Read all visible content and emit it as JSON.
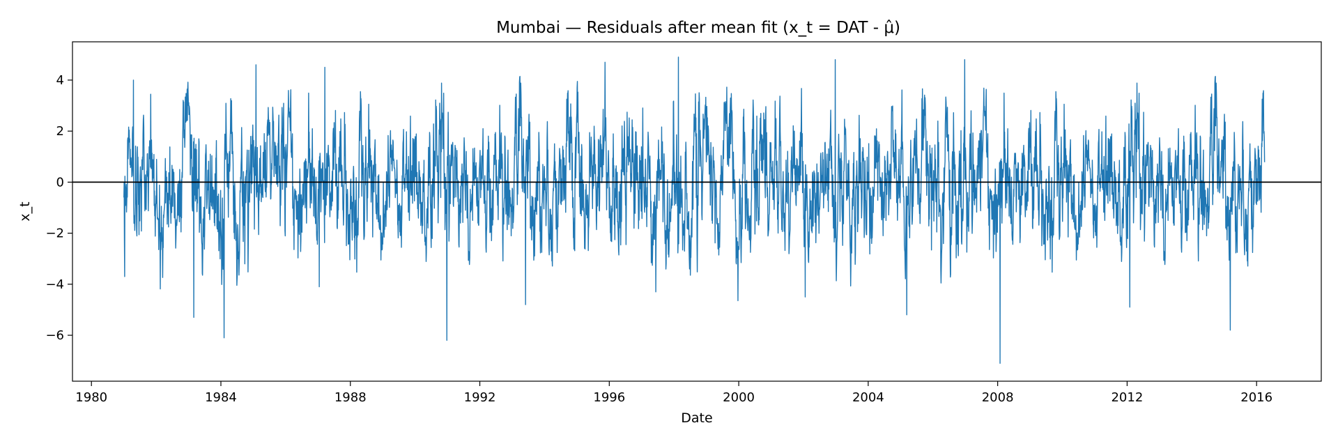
{
  "chart_data": {
    "type": "line",
    "title": "Mumbai — Residuals after mean fit (x_t = DAT - μ̂)",
    "xlabel": "Date",
    "ylabel": "x_t",
    "x_type": "date",
    "x_range": [
      "1979-06-01",
      "2017-12-31"
    ],
    "ylim": [
      -7.8,
      5.5
    ],
    "x_ticks": [
      "1980",
      "1984",
      "1988",
      "1992",
      "1996",
      "2000",
      "2004",
      "2008",
      "2012",
      "2016"
    ],
    "y_ticks": [
      -6,
      -4,
      -2,
      0,
      2,
      4
    ],
    "y_tick_labels": [
      "−6",
      "−4",
      "−2",
      "0",
      "2",
      "4"
    ],
    "grid": false,
    "legend": "none",
    "reference_line": {
      "y": 0,
      "color": "#000000"
    },
    "series": [
      {
        "color": "#1f77b4",
        "start": "1981-01-01",
        "end": "2016-03-31",
        "frequency": "daily",
        "min": -7.1,
        "max": 4.9,
        "notable_points": [
          {
            "date": "1981-01-10",
            "value": -3.7
          },
          {
            "date": "1981-04-20",
            "value": 4.0
          },
          {
            "date": "1983-03-01",
            "value": -5.3
          },
          {
            "date": "1984-02-05",
            "value": -6.1
          },
          {
            "date": "1985-02-01",
            "value": 4.6
          },
          {
            "date": "1987-01-15",
            "value": -4.1
          },
          {
            "date": "1987-03-20",
            "value": 4.5
          },
          {
            "date": "1990-12-25",
            "value": -6.2
          },
          {
            "date": "1993-06-01",
            "value": -4.8
          },
          {
            "date": "1995-11-15",
            "value": 4.7
          },
          {
            "date": "1997-06-10",
            "value": -4.3
          },
          {
            "date": "1998-02-20",
            "value": 4.9
          },
          {
            "date": "2002-01-20",
            "value": -4.5
          },
          {
            "date": "2002-12-25",
            "value": 4.8
          },
          {
            "date": "2005-03-10",
            "value": -5.2
          },
          {
            "date": "2006-12-25",
            "value": 4.8
          },
          {
            "date": "2008-01-28",
            "value": -7.1
          },
          {
            "date": "2012-02-01",
            "value": -4.9
          },
          {
            "date": "2015-03-10",
            "value": -5.8
          }
        ]
      }
    ]
  }
}
